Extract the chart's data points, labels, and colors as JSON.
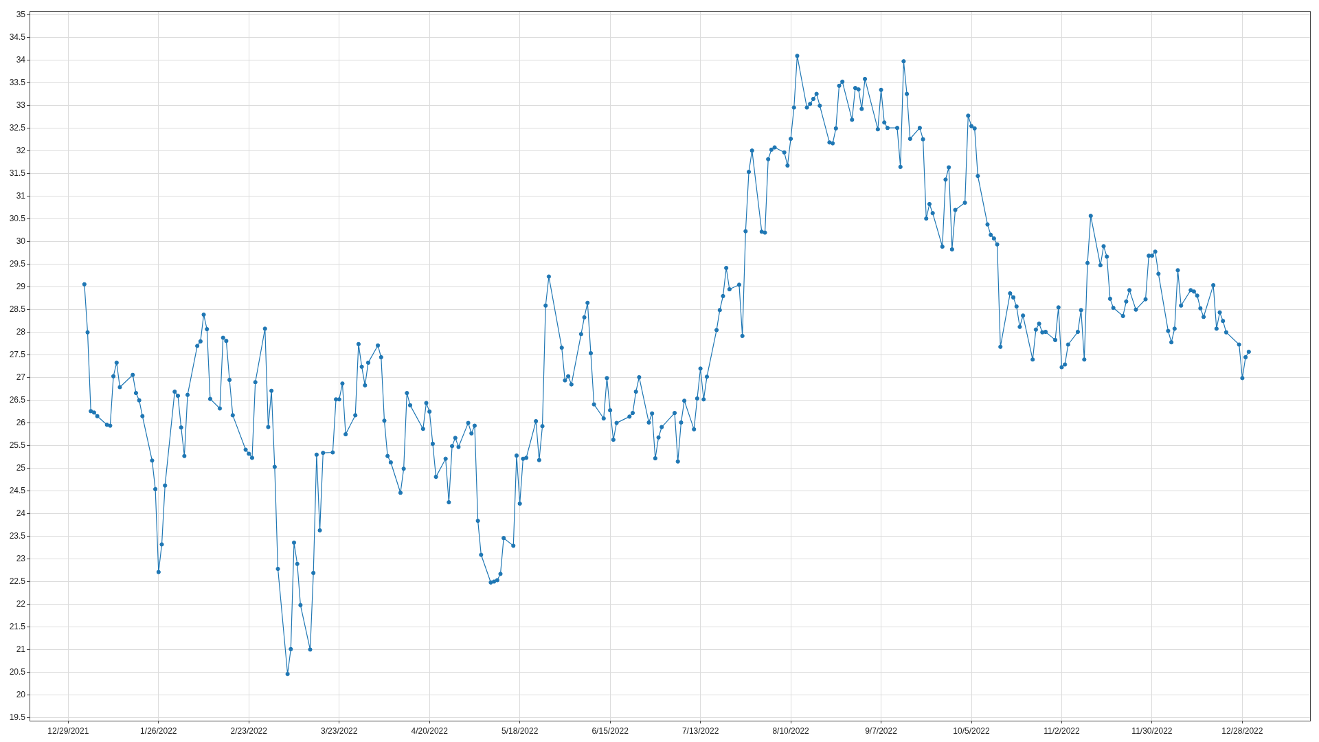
{
  "chart_data": {
    "type": "line",
    "color": "#1f77b4",
    "marker": "circle",
    "line_style": "solid",
    "grid": true,
    "xlim": [
      "2021-12-17",
      "2023-01-18"
    ],
    "xticks": [
      {
        "value": "2021-12-29",
        "label": "12/29/2021"
      },
      {
        "value": "2022-01-26",
        "label": "1/26/2022"
      },
      {
        "value": "2022-02-23",
        "label": "2/23/2022"
      },
      {
        "value": "2022-03-23",
        "label": "3/23/2022"
      },
      {
        "value": "2022-04-20",
        "label": "4/20/2022"
      },
      {
        "value": "2022-05-18",
        "label": "5/18/2022"
      },
      {
        "value": "2022-06-15",
        "label": "6/15/2022"
      },
      {
        "value": "2022-07-13",
        "label": "7/13/2022"
      },
      {
        "value": "2022-08-10",
        "label": "8/10/2022"
      },
      {
        "value": "2022-09-07",
        "label": "9/7/2022"
      },
      {
        "value": "2022-10-05",
        "label": "10/5/2022"
      },
      {
        "value": "2022-11-02",
        "label": "11/2/2022"
      },
      {
        "value": "2022-11-30",
        "label": "11/30/2022"
      },
      {
        "value": "2022-12-28",
        "label": "12/28/2022"
      }
    ],
    "ylim": [
      19.43,
      35.09
    ],
    "yticks": [
      19.5,
      20,
      20.5,
      21,
      21.5,
      22,
      22.5,
      23,
      23.5,
      24,
      24.5,
      25,
      25.5,
      26,
      26.5,
      27,
      27.5,
      28,
      28.5,
      29,
      29.5,
      30,
      30.5,
      31,
      31.5,
      32,
      32.5,
      33,
      33.5,
      34,
      34.5,
      35
    ],
    "x": [
      "2022-01-03",
      "2022-01-04",
      "2022-01-05",
      "2022-01-06",
      "2022-01-07",
      "2022-01-10",
      "2022-01-11",
      "2022-01-12",
      "2022-01-13",
      "2022-01-14",
      "2022-01-18",
      "2022-01-19",
      "2022-01-20",
      "2022-01-21",
      "2022-01-24",
      "2022-01-25",
      "2022-01-26",
      "2022-01-27",
      "2022-01-28",
      "2022-01-31",
      "2022-02-01",
      "2022-02-02",
      "2022-02-03",
      "2022-02-04",
      "2022-02-07",
      "2022-02-08",
      "2022-02-09",
      "2022-02-10",
      "2022-02-11",
      "2022-02-14",
      "2022-02-15",
      "2022-02-16",
      "2022-02-17",
      "2022-02-18",
      "2022-02-22",
      "2022-02-23",
      "2022-02-24",
      "2022-02-25",
      "2022-02-28",
      "2022-03-01",
      "2022-03-02",
      "2022-03-03",
      "2022-03-04",
      "2022-03-07",
      "2022-03-08",
      "2022-03-09",
      "2022-03-10",
      "2022-03-11",
      "2022-03-14",
      "2022-03-15",
      "2022-03-16",
      "2022-03-17",
      "2022-03-18",
      "2022-03-21",
      "2022-03-22",
      "2022-03-23",
      "2022-03-24",
      "2022-03-25",
      "2022-03-28",
      "2022-03-29",
      "2022-03-30",
      "2022-03-31",
      "2022-04-01",
      "2022-04-04",
      "2022-04-05",
      "2022-04-06",
      "2022-04-07",
      "2022-04-08",
      "2022-04-11",
      "2022-04-12",
      "2022-04-13",
      "2022-04-14",
      "2022-04-18",
      "2022-04-19",
      "2022-04-20",
      "2022-04-21",
      "2022-04-22",
      "2022-04-25",
      "2022-04-26",
      "2022-04-27",
      "2022-04-28",
      "2022-04-29",
      "2022-05-02",
      "2022-05-03",
      "2022-05-04",
      "2022-05-05",
      "2022-05-06",
      "2022-05-09",
      "2022-05-10",
      "2022-05-11",
      "2022-05-12",
      "2022-05-13",
      "2022-05-16",
      "2022-05-17",
      "2022-05-18",
      "2022-05-19",
      "2022-05-20",
      "2022-05-23",
      "2022-05-24",
      "2022-05-25",
      "2022-05-26",
      "2022-05-27",
      "2022-05-31",
      "2022-06-01",
      "2022-06-02",
      "2022-06-03",
      "2022-06-06",
      "2022-06-07",
      "2022-06-08",
      "2022-06-09",
      "2022-06-10",
      "2022-06-13",
      "2022-06-14",
      "2022-06-15",
      "2022-06-16",
      "2022-06-17",
      "2022-06-21",
      "2022-06-22",
      "2022-06-23",
      "2022-06-24",
      "2022-06-27",
      "2022-06-28",
      "2022-06-29",
      "2022-06-30",
      "2022-07-01",
      "2022-07-05",
      "2022-07-06",
      "2022-07-07",
      "2022-07-08",
      "2022-07-11",
      "2022-07-12",
      "2022-07-13",
      "2022-07-14",
      "2022-07-15",
      "2022-07-18",
      "2022-07-19",
      "2022-07-20",
      "2022-07-21",
      "2022-07-22",
      "2022-07-25",
      "2022-07-26",
      "2022-07-27",
      "2022-07-28",
      "2022-07-29",
      "2022-08-01",
      "2022-08-02",
      "2022-08-03",
      "2022-08-04",
      "2022-08-05",
      "2022-08-08",
      "2022-08-09",
      "2022-08-10",
      "2022-08-11",
      "2022-08-12",
      "2022-08-15",
      "2022-08-16",
      "2022-08-17",
      "2022-08-18",
      "2022-08-19",
      "2022-08-22",
      "2022-08-23",
      "2022-08-24",
      "2022-08-25",
      "2022-08-26",
      "2022-08-29",
      "2022-08-30",
      "2022-08-31",
      "2022-09-01",
      "2022-09-02",
      "2022-09-06",
      "2022-09-07",
      "2022-09-08",
      "2022-09-09",
      "2022-09-12",
      "2022-09-13",
      "2022-09-14",
      "2022-09-15",
      "2022-09-16",
      "2022-09-19",
      "2022-09-20",
      "2022-09-21",
      "2022-09-22",
      "2022-09-23",
      "2022-09-26",
      "2022-09-27",
      "2022-09-28",
      "2022-09-29",
      "2022-09-30",
      "2022-10-03",
      "2022-10-04",
      "2022-10-05",
      "2022-10-06",
      "2022-10-07",
      "2022-10-10",
      "2022-10-11",
      "2022-10-12",
      "2022-10-13",
      "2022-10-14",
      "2022-10-17",
      "2022-10-18",
      "2022-10-19",
      "2022-10-20",
      "2022-10-21",
      "2022-10-24",
      "2022-10-25",
      "2022-10-26",
      "2022-10-27",
      "2022-10-28",
      "2022-10-31",
      "2022-11-01",
      "2022-11-02",
      "2022-11-03",
      "2022-11-04",
      "2022-11-07",
      "2022-11-08",
      "2022-11-09",
      "2022-11-10",
      "2022-11-11",
      "2022-11-14",
      "2022-11-15",
      "2022-11-16",
      "2022-11-17",
      "2022-11-18",
      "2022-11-21",
      "2022-11-22",
      "2022-11-23",
      "2022-11-25",
      "2022-11-28",
      "2022-11-29",
      "2022-11-30",
      "2022-12-01",
      "2022-12-02",
      "2022-12-05",
      "2022-12-06",
      "2022-12-07",
      "2022-12-08",
      "2022-12-09",
      "2022-12-12",
      "2022-12-13",
      "2022-12-14",
      "2022-12-15",
      "2022-12-16",
      "2022-12-19",
      "2022-12-20",
      "2022-12-21",
      "2022-12-22",
      "2022-12-23",
      "2022-12-27",
      "2022-12-28",
      "2022-12-29",
      "2022-12-30"
    ],
    "values": [
      29.06,
      28.0,
      26.26,
      26.23,
      26.15,
      25.96,
      25.94,
      27.03,
      27.33,
      26.79,
      27.06,
      26.66,
      26.5,
      26.15,
      25.17,
      24.54,
      22.71,
      23.32,
      24.62,
      26.69,
      26.6,
      25.9,
      25.27,
      26.62,
      27.7,
      27.8,
      28.39,
      28.07,
      26.53,
      26.32,
      27.88,
      27.81,
      26.95,
      26.17,
      25.41,
      25.32,
      25.23,
      26.9,
      28.08,
      25.91,
      26.71,
      25.03,
      22.78,
      20.46,
      21.01,
      23.36,
      22.89,
      21.98,
      21.0,
      22.69,
      25.3,
      23.63,
      25.34,
      25.35,
      26.52,
      26.52,
      26.87,
      25.75,
      26.17,
      27.74,
      27.24,
      26.83,
      27.33,
      27.71,
      27.45,
      26.05,
      25.27,
      25.13,
      24.46,
      24.99,
      26.66,
      26.39,
      25.87,
      26.44,
      26.25,
      25.54,
      24.81,
      25.21,
      24.25,
      25.49,
      25.67,
      25.47,
      26.0,
      25.77,
      25.94,
      23.84,
      23.09,
      22.48,
      22.5,
      22.53,
      22.67,
      23.46,
      23.29,
      25.28,
      24.22,
      25.21,
      25.23,
      26.04,
      25.18,
      25.93,
      28.59,
      29.23,
      27.66,
      26.94,
      27.03,
      26.85,
      27.96,
      28.33,
      28.65,
      27.54,
      26.41,
      26.1,
      26.99,
      26.28,
      25.63,
      26.0,
      26.14,
      26.22,
      26.69,
      27.01,
      26.01,
      26.21,
      25.22,
      25.68,
      25.91,
      26.22,
      25.15,
      26.01,
      26.49,
      25.86,
      26.54,
      27.2,
      26.52,
      27.02,
      28.05,
      28.49,
      28.8,
      29.42,
      28.95,
      29.05,
      27.92,
      30.23,
      31.54,
      32.01,
      30.22,
      30.2,
      31.82,
      32.03,
      32.08,
      31.97,
      31.68,
      32.27,
      32.96,
      34.1,
      32.96,
      33.04,
      33.15,
      33.26,
      33.0,
      32.19,
      32.17,
      32.5,
      33.44,
      33.53,
      32.69,
      33.39,
      33.36,
      32.93,
      33.59,
      32.48,
      33.35,
      32.63,
      32.51,
      32.51,
      31.65,
      33.98,
      33.26,
      32.27,
      32.51,
      32.26,
      30.51,
      30.83,
      30.63,
      29.89,
      31.37,
      31.64,
      29.83,
      30.7,
      30.86,
      32.78,
      32.55,
      32.5,
      31.45,
      30.38,
      30.15,
      30.07,
      29.94,
      27.68,
      28.86,
      28.77,
      28.57,
      28.12,
      28.37,
      27.4,
      28.06,
      28.19,
      28.0,
      28.01,
      27.83,
      28.55,
      27.23,
      27.29,
      27.73,
      28.01,
      28.49,
      27.4,
      29.53,
      30.57,
      29.48,
      29.9,
      29.67,
      28.74,
      28.54,
      28.36,
      28.68,
      28.93,
      28.5,
      28.73,
      29.69,
      29.69,
      29.78,
      29.29,
      28.03,
      27.78,
      28.08,
      29.37,
      28.59,
      28.93,
      28.9,
      28.81,
      28.53,
      28.34,
      29.04,
      28.08,
      28.44,
      28.25,
      28.0,
      27.73,
      26.99,
      27.45,
      27.57
    ]
  }
}
